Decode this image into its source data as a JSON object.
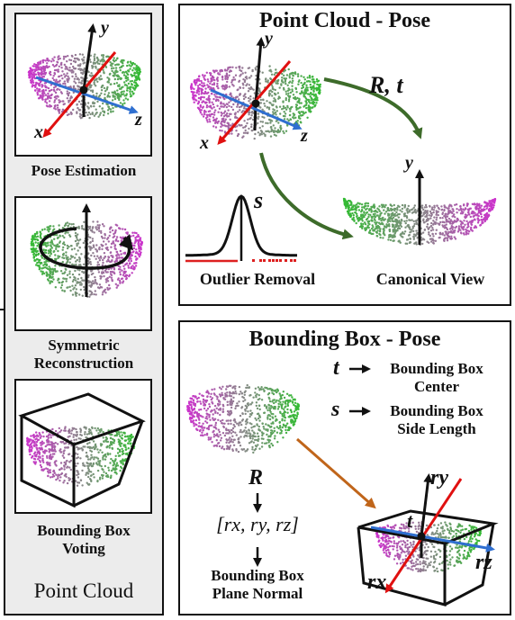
{
  "left_panel": {
    "footer": "Point Cloud",
    "steps": [
      {
        "label": "Pose Estimation"
      },
      {
        "label_line1": "Symmetric",
        "label_line2": "Reconstruction"
      },
      {
        "label_line1": "Bounding Box",
        "label_line2": "Voting"
      }
    ]
  },
  "axes": {
    "x": "x",
    "y": "y",
    "z": "z"
  },
  "point_cloud_panel": {
    "title": "Point Cloud - Pose",
    "rt_label": "R, t",
    "s_label": "s",
    "outlier_label": "Outlier Removal",
    "canonical_label": "Canonical View"
  },
  "bbox_panel": {
    "title": "Bounding Box - Pose",
    "t_symbol": "t",
    "t_desc_line1": "Bounding Box",
    "t_desc_line2": "Center",
    "s_symbol": "s",
    "s_desc_line1": "Bounding Box",
    "s_desc_line2": "Side Length",
    "r_symbol": "R",
    "r_vector": "[rx, ry, rz]",
    "r_desc_line1": "Bounding Box",
    "r_desc_line2": "Plane Normal",
    "rx": "rx",
    "ry": "ry",
    "rz": "rz",
    "t_point": "t"
  },
  "colors": {
    "magenta": "#cc33cc",
    "green": "#33bb33",
    "gray": "#888888",
    "x_axis": "#e01010",
    "z_axis": "#2f6fd0",
    "arrow_green": "#3d6b2a",
    "arrow_orange": "#c0651a"
  }
}
